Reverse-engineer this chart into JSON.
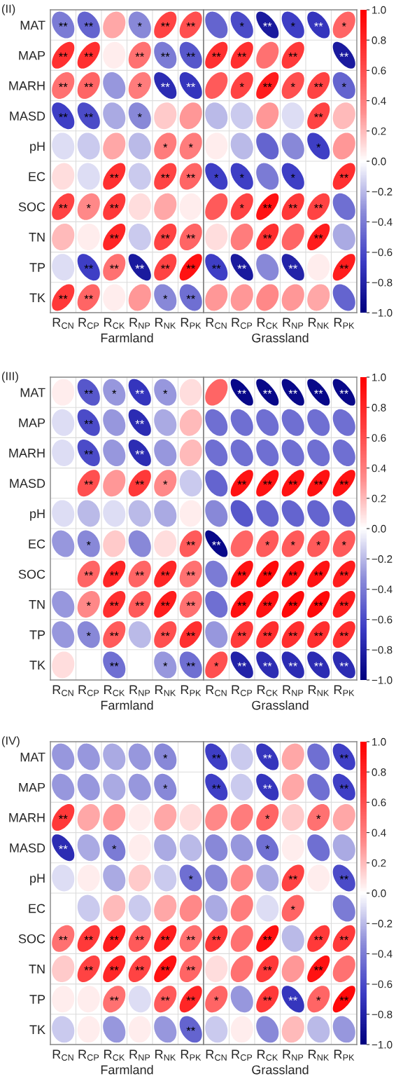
{
  "chart_data": [
    {
      "type": "heatmap",
      "title": "(II)",
      "categories": [
        "R$_{CN}$",
        "R$_{CP}$",
        "R$_{CK}$",
        "R$_{NP}$",
        "R$_{NK}$",
        "R$_{PK}$",
        "R$_{CN}$",
        "R$_{CP}$",
        "R$_{CK}$",
        "R$_{NP}$",
        "R$_{NK}$",
        "R$_{PK}$"
      ],
      "y_categories": [
        "MAT",
        "MAP",
        "MARH",
        "MASD",
        "pH",
        "EC",
        "SOC",
        "TN",
        "TP",
        "TK"
      ],
      "annotations": [
        "Farmland",
        "Grassland"
      ],
      "grid": true,
      "clim": [
        -1,
        1
      ],
      "cticks": [
        {
          "value": 1,
          "label": "1.0"
        },
        {
          "value": 0.8,
          "label": "0.8"
        },
        {
          "value": 0.6,
          "label": "0.6"
        },
        {
          "value": 0.4,
          "label": "0.4"
        },
        {
          "value": 0.2,
          "label": "0.2"
        },
        {
          "value": 0,
          "label": "0.0"
        },
        {
          "value": -0.2,
          "label": "−0.2"
        },
        {
          "value": -0.4,
          "label": "−0.4"
        },
        {
          "value": -0.6,
          "label": "−0.6"
        },
        {
          "value": -0.8,
          "label": "−0.8"
        },
        {
          "value": -1,
          "label": "−1.0"
        }
      ],
      "cells": [
        [
          -0.4,
          -0.5,
          0.25,
          -0.35,
          0.65,
          0.6,
          -0.5,
          -0.6,
          -0.85,
          -0.65,
          -0.7,
          0.5
        ],
        [
          0.75,
          0.75,
          0.05,
          0.45,
          -0.4,
          -0.55,
          0.75,
          0.75,
          0.45,
          0.7,
          null,
          -0.85
        ],
        [
          0.45,
          0.5,
          -0.3,
          0.4,
          -0.75,
          -0.7,
          0.55,
          0.65,
          0.85,
          0.6,
          0.65,
          -0.5
        ],
        [
          -0.65,
          -0.6,
          -0.25,
          -0.35,
          0.15,
          0.3,
          -0.2,
          -0.15,
          0.3,
          -0.1,
          0.65,
          0.2
        ],
        [
          -0.1,
          -0.15,
          0.25,
          -0.2,
          0.4,
          0.4,
          0.05,
          -0.2,
          -0.5,
          -0.35,
          -0.65,
          0.3
        ],
        [
          0.1,
          -0.1,
          0.75,
          -0.15,
          0.65,
          0.5,
          -0.65,
          -0.65,
          -0.4,
          -0.65,
          null,
          0.75
        ],
        [
          0.65,
          0.35,
          0.7,
          0.1,
          0.25,
          0.05,
          0.55,
          0.65,
          0.9,
          0.7,
          0.65,
          -0.45
        ],
        [
          0.2,
          0.05,
          0.8,
          -0.15,
          0.65,
          0.5,
          0.1,
          0.4,
          0.75,
          0.5,
          0.85,
          -0.25
        ],
        [
          -0.1,
          -0.65,
          0.45,
          -0.85,
          0.65,
          0.9,
          -0.65,
          -0.85,
          -0.35,
          -0.8,
          0.05,
          0.85
        ],
        [
          0.7,
          0.5,
          0.05,
          0.3,
          -0.35,
          -0.45,
          0.3,
          0.3,
          0.35,
          0.3,
          0.25,
          -0.5
        ]
      ],
      "cell_labels": [
        [
          "**",
          "**",
          null,
          "*",
          "**",
          "**",
          null,
          "*",
          "**",
          "*",
          "**",
          "*"
        ],
        [
          "**",
          "**",
          null,
          "**",
          "**",
          "**",
          "**",
          "**",
          null,
          "**",
          null,
          "**"
        ],
        [
          "**",
          "**",
          null,
          "*",
          "**",
          "**",
          null,
          "*",
          "**",
          "*",
          "**",
          "*"
        ],
        [
          "**",
          "**",
          null,
          "*",
          null,
          null,
          null,
          null,
          null,
          null,
          "**",
          null
        ],
        [
          null,
          null,
          null,
          null,
          "*",
          "*",
          null,
          null,
          null,
          null,
          "*",
          null
        ],
        [
          null,
          null,
          "**",
          null,
          "**",
          "**",
          "*",
          "*",
          null,
          "*",
          null,
          "**"
        ],
        [
          "**",
          "*",
          "**",
          null,
          null,
          null,
          null,
          "*",
          "**",
          "**",
          "**",
          null
        ],
        [
          null,
          null,
          "**",
          null,
          "**",
          "**",
          null,
          null,
          "**",
          null,
          "**",
          null
        ],
        [
          null,
          "**",
          "**",
          "**",
          "**",
          "**",
          "**",
          "**",
          null,
          "**",
          null,
          "**"
        ],
        [
          "**",
          "**",
          null,
          null,
          "*",
          "**",
          null,
          null,
          null,
          null,
          null,
          null
        ]
      ]
    },
    {
      "type": "heatmap",
      "title": "(III)",
      "categories": [
        "R$_{CN}$",
        "R$_{CP}$",
        "R$_{CK}$",
        "R$_{NP}$",
        "R$_{NK}$",
        "R$_{PK}$",
        "R$_{CN}$",
        "R$_{CP}$",
        "R$_{CK}$",
        "R$_{NP}$",
        "R$_{NK}$",
        "R$_{PK}$"
      ],
      "y_categories": [
        "MAT",
        "MAP",
        "MARH",
        "MASD",
        "pH",
        "EC",
        "SOC",
        "TN",
        "TP",
        "TK"
      ],
      "annotations": [
        "Farmland",
        "Grassland"
      ],
      "grid": true,
      "clim": [
        -1,
        1
      ],
      "cticks": [
        {
          "value": 1,
          "label": "1.0"
        },
        {
          "value": 0.8,
          "label": "0.8"
        },
        {
          "value": 0.6,
          "label": "0.6"
        },
        {
          "value": 0.4,
          "label": "0.4"
        },
        {
          "value": 0.2,
          "label": "0.2"
        },
        {
          "value": 0,
          "label": "0.0"
        },
        {
          "value": -0.2,
          "label": "−0.2"
        },
        {
          "value": -0.4,
          "label": "−0.4"
        },
        {
          "value": -0.6,
          "label": "−0.6"
        },
        {
          "value": -0.8,
          "label": "−0.8"
        },
        {
          "value": -1,
          "label": "−1.0"
        }
      ],
      "cells": [
        [
          0.05,
          -0.55,
          -0.3,
          -0.7,
          -0.3,
          0.1,
          0.5,
          -0.95,
          -0.95,
          -0.95,
          -0.95,
          -0.95
        ],
        [
          -0.1,
          -0.6,
          -0.3,
          -0.75,
          -0.25,
          0.2,
          -0.45,
          -0.45,
          -0.45,
          -0.45,
          -0.45,
          -0.45
        ],
        [
          -0.1,
          -0.6,
          -0.3,
          -0.75,
          -0.3,
          0.2,
          -0.45,
          -0.45,
          -0.45,
          -0.45,
          -0.45,
          -0.45
        ],
        [
          null,
          0.6,
          0.3,
          0.7,
          0.35,
          -0.15,
          -0.5,
          0.9,
          0.9,
          0.9,
          0.9,
          0.9
        ],
        [
          -0.1,
          -0.2,
          -0.1,
          -0.2,
          -0.25,
          0.05,
          -0.35,
          -0.55,
          -0.5,
          -0.5,
          -0.5,
          -0.5
        ],
        [
          -0.3,
          -0.35,
          0.15,
          -0.35,
          0.1,
          0.55,
          -0.95,
          0.5,
          0.55,
          0.55,
          0.55,
          0.55
        ],
        [
          null,
          0.5,
          0.8,
          0.5,
          0.8,
          0.45,
          -0.4,
          0.9,
          0.95,
          0.9,
          0.9,
          0.85
        ],
        [
          -0.3,
          0.35,
          0.75,
          0.55,
          0.85,
          0.45,
          -0.45,
          0.9,
          0.9,
          0.95,
          0.95,
          0.85
        ],
        [
          -0.3,
          -0.35,
          0.55,
          -0.2,
          0.6,
          0.75,
          -0.3,
          0.7,
          0.75,
          0.75,
          0.75,
          0.75
        ],
        [
          0.1,
          null,
          -0.45,
          null,
          -0.3,
          -0.45,
          0.6,
          -0.8,
          -0.75,
          -0.75,
          -0.75,
          -0.75
        ]
      ],
      "cell_labels": [
        [
          null,
          "**",
          "*",
          "**",
          "*",
          null,
          null,
          "**",
          "**",
          "**",
          "**",
          "**"
        ],
        [
          null,
          "**",
          null,
          "**",
          null,
          null,
          null,
          null,
          null,
          null,
          null,
          null
        ],
        [
          null,
          "**",
          null,
          "**",
          null,
          null,
          null,
          null,
          null,
          null,
          null,
          null
        ],
        [
          null,
          "**",
          null,
          "**",
          "*",
          null,
          null,
          "**",
          "**",
          "**",
          "**",
          "**"
        ],
        [
          null,
          null,
          null,
          null,
          null,
          null,
          null,
          null,
          null,
          null,
          null,
          null
        ],
        [
          null,
          "*",
          null,
          null,
          null,
          "**",
          "**",
          null,
          "*",
          "*",
          "*",
          "*"
        ],
        [
          null,
          "**",
          "**",
          "**",
          "**",
          "**",
          null,
          "**",
          "**",
          "**",
          "**",
          "**"
        ],
        [
          null,
          "*",
          "**",
          "**",
          "**",
          "**",
          null,
          "**",
          "**",
          "**",
          "**",
          "**"
        ],
        [
          null,
          "*",
          "**",
          null,
          "**",
          "**",
          null,
          "**",
          "**",
          "**",
          "**",
          "**"
        ],
        [
          null,
          null,
          "**",
          null,
          "*",
          "**",
          "*",
          "**",
          "**",
          "**",
          "**",
          "**"
        ]
      ]
    },
    {
      "type": "heatmap",
      "title": "(IV)",
      "categories": [
        "R$_{CN}$",
        "R$_{CP}$",
        "R$_{CK}$",
        "R$_{NP}$",
        "R$_{NK}$",
        "R$_{PK}$",
        "R$_{CN}$",
        "R$_{CP}$",
        "R$_{CK}$",
        "R$_{NP}$",
        "R$_{NK}$",
        "R$_{PK}$"
      ],
      "y_categories": [
        "MAT",
        "MAP",
        "MARH",
        "MASD",
        "pH",
        "EC",
        "SOC",
        "TN",
        "TP",
        "TK"
      ],
      "annotations": [
        "Farmland",
        "Grassland"
      ],
      "grid": true,
      "clim": [
        -1,
        1
      ],
      "cticks": [
        {
          "value": 1,
          "label": "1.0"
        },
        {
          "value": 0.8,
          "label": "0.8"
        },
        {
          "value": 0.6,
          "label": "0.6"
        },
        {
          "value": 0.4,
          "label": "0.4"
        },
        {
          "value": 0.2,
          "label": "0.2"
        },
        {
          "value": 0,
          "label": "0.0"
        },
        {
          "value": -0.2,
          "label": "−0.2"
        },
        {
          "value": -0.4,
          "label": "−0.4"
        },
        {
          "value": -0.6,
          "label": "−0.6"
        },
        {
          "value": -0.8,
          "label": "−0.8"
        },
        {
          "value": -1,
          "label": "−1.0"
        }
      ],
      "cells": [
        [
          -0.3,
          -0.3,
          -0.25,
          -0.3,
          -0.35,
          null,
          -0.65,
          -0.15,
          -0.7,
          0.25,
          -0.45,
          -0.65
        ],
        [
          -0.3,
          -0.3,
          -0.25,
          -0.3,
          -0.35,
          null,
          -0.65,
          -0.15,
          -0.7,
          0.25,
          -0.45,
          -0.65
        ],
        [
          0.7,
          0.25,
          0.3,
          0.05,
          0.25,
          0.1,
          0.35,
          0.4,
          0.5,
          0.15,
          0.45,
          0.25
        ],
        [
          -0.75,
          -0.25,
          -0.4,
          0.05,
          -0.25,
          -0.2,
          -0.35,
          -0.3,
          -0.45,
          0.05,
          -0.45,
          -0.25
        ],
        [
          -0.1,
          0.05,
          -0.25,
          0.15,
          -0.15,
          -0.45,
          -0.35,
          0.35,
          -0.25,
          0.65,
          0.05,
          -0.6
        ],
        [
          null,
          -0.15,
          0.2,
          -0.15,
          0.25,
          0.35,
          -0.25,
          0.4,
          -0.1,
          0.5,
          null,
          -0.4
        ],
        [
          0.45,
          0.7,
          0.85,
          0.55,
          0.85,
          0.45,
          0.7,
          0.45,
          0.9,
          -0.2,
          0.7,
          0.7
        ],
        [
          0.15,
          0.65,
          0.8,
          0.65,
          0.9,
          0.5,
          0.1,
          0.45,
          0.7,
          0.3,
          0.9,
          0.45
        ],
        [
          0.05,
          0.05,
          0.45,
          -0.1,
          0.55,
          0.8,
          0.5,
          -0.3,
          0.7,
          -0.7,
          0.5,
          0.95
        ],
        [
          -0.15,
          0.05,
          -0.3,
          0.05,
          -0.3,
          -0.5,
          -0.15,
          0.05,
          -0.35,
          0.2,
          -0.2,
          -0.3
        ]
      ],
      "cell_labels": [
        [
          null,
          null,
          null,
          null,
          "*",
          null,
          "**",
          null,
          "**",
          null,
          null,
          "**"
        ],
        [
          null,
          null,
          null,
          null,
          "*",
          null,
          "**",
          null,
          "**",
          null,
          null,
          "**"
        ],
        [
          "**",
          null,
          null,
          null,
          null,
          null,
          null,
          null,
          "*",
          null,
          "*",
          null
        ],
        [
          "**",
          null,
          "*",
          null,
          null,
          null,
          null,
          null,
          "*",
          null,
          null,
          null
        ],
        [
          null,
          null,
          null,
          null,
          null,
          "*",
          null,
          null,
          null,
          "**",
          null,
          "**"
        ],
        [
          null,
          null,
          null,
          null,
          null,
          null,
          null,
          null,
          null,
          "*",
          null,
          null
        ],
        [
          "**",
          "**",
          "**",
          "**",
          "**",
          "**",
          "**",
          null,
          "**",
          null,
          "**",
          "**"
        ],
        [
          null,
          "**",
          "**",
          "**",
          "**",
          "**",
          null,
          null,
          "**",
          null,
          "**",
          null
        ],
        [
          null,
          null,
          "**",
          null,
          "**",
          "**",
          "*",
          null,
          "**",
          "**",
          "*",
          "**"
        ],
        [
          null,
          null,
          null,
          null,
          null,
          "**",
          null,
          null,
          null,
          null,
          null,
          null
        ]
      ]
    }
  ]
}
